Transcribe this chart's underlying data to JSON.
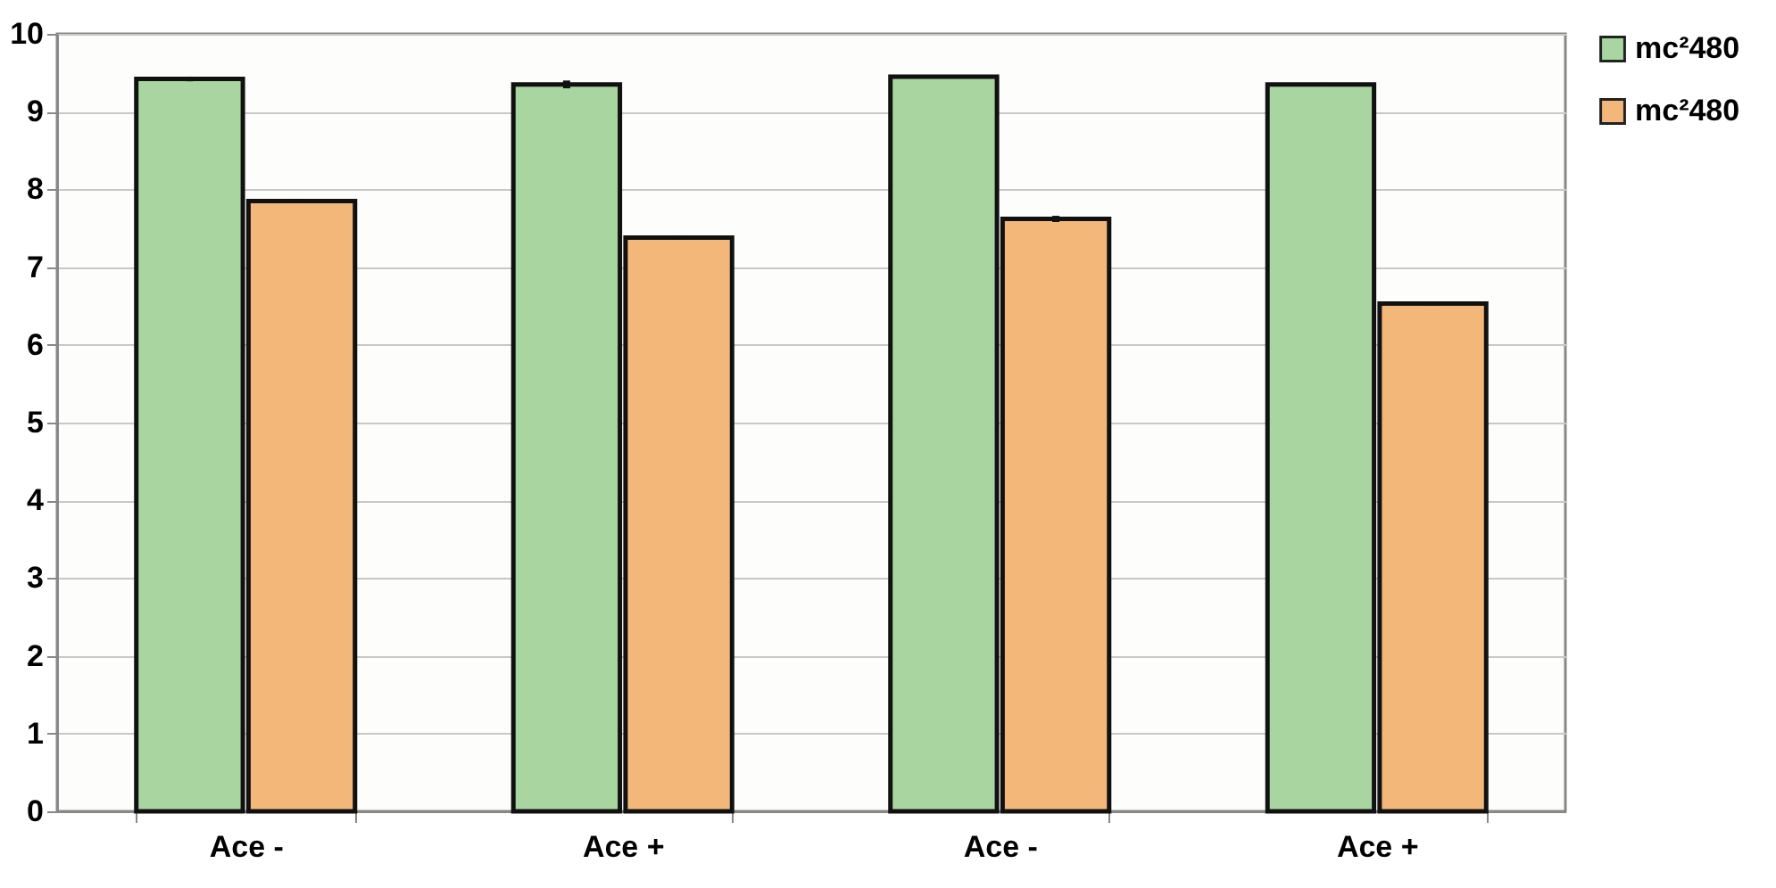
{
  "chart_data": {
    "type": "bar",
    "categories": [
      "Ace -",
      "Ace +",
      "Ace -",
      "Ace +"
    ],
    "series": [
      {
        "name": "mc²480",
        "color": "#a8d5a0",
        "values": [
          9.42,
          9.35,
          9.45,
          9.35
        ],
        "errors": [
          0.03,
          0.05,
          0.02,
          0.02
        ]
      },
      {
        "name": "mc²480",
        "color": "#f4b77a",
        "values": [
          7.85,
          7.38,
          7.62,
          6.53
        ],
        "errors": [
          0.02,
          0.02,
          0.04,
          0.02
        ]
      }
    ],
    "ylim": [
      0,
      10
    ],
    "yticks": [
      0,
      1,
      2,
      3,
      4,
      5,
      6,
      7,
      8,
      9,
      10
    ],
    "grid": "y",
    "legend": "right"
  }
}
